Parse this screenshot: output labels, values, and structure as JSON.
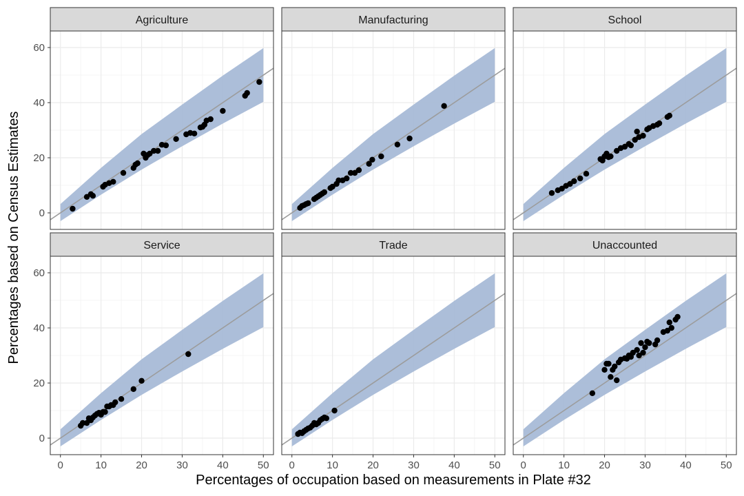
{
  "chart_data": {
    "type": "scatter",
    "xlabel": "Percentages of occupation based on measurements in Plate #32",
    "ylabel": "Percentages based on Census Estimates",
    "xlim": [
      -2.5,
      52.5
    ],
    "ylim": [
      -6,
      66
    ],
    "x_ticks": [
      0,
      10,
      20,
      30,
      40,
      50
    ],
    "y_ticks": [
      0,
      20,
      40,
      60
    ],
    "grid": true,
    "colors": {
      "points": "#000000",
      "band": "#a8bad7",
      "line": "#9c9c9c",
      "strip": "#d9d9d9",
      "grid_major": "#ebebeb",
      "grid_minor": "#f5f5f5",
      "border": "#333333"
    },
    "reference_line": {
      "slope": 1.0,
      "intercept": 0
    },
    "band": {
      "x": [
        0,
        10,
        20,
        30,
        40,
        50
      ],
      "lower": [
        -3,
        6.6,
        15.7,
        24.2,
        32.4,
        40.3
      ],
      "upper": [
        3.2,
        16.3,
        28.6,
        39.3,
        49.8,
        59.8
      ]
    },
    "panels": [
      {
        "name": "Agriculture",
        "points": [
          [
            3,
            1.5
          ],
          [
            6.5,
            5.8
          ],
          [
            7.5,
            6.8
          ],
          [
            8,
            6.2
          ],
          [
            10.5,
            9.5
          ],
          [
            11,
            10.2
          ],
          [
            12,
            10.8
          ],
          [
            13,
            11.3
          ],
          [
            15.5,
            14.5
          ],
          [
            18,
            16.3
          ],
          [
            18.5,
            17.5
          ],
          [
            19,
            18
          ],
          [
            20.5,
            21.5
          ],
          [
            21,
            20
          ],
          [
            21.5,
            21
          ],
          [
            22,
            21.5
          ],
          [
            23,
            22.5
          ],
          [
            24,
            22.5
          ],
          [
            25,
            24.7
          ],
          [
            26,
            24.5
          ],
          [
            28.5,
            26.8
          ],
          [
            31,
            28.5
          ],
          [
            32,
            29
          ],
          [
            33,
            28.8
          ],
          [
            34.5,
            31
          ],
          [
            35,
            31.2
          ],
          [
            35.5,
            32
          ],
          [
            36,
            33.5
          ],
          [
            37,
            34
          ],
          [
            40,
            37
          ],
          [
            45.5,
            42.5
          ],
          [
            46,
            43.5
          ],
          [
            49,
            47.5
          ]
        ]
      },
      {
        "name": "Manufacturing",
        "points": [
          [
            2,
            1.8
          ],
          [
            2.5,
            2.5
          ],
          [
            3,
            2.8
          ],
          [
            3.5,
            3.2
          ],
          [
            4,
            3.5
          ],
          [
            5.5,
            5
          ],
          [
            6,
            5.5
          ],
          [
            6.5,
            6
          ],
          [
            7,
            6.5
          ],
          [
            7.5,
            7
          ],
          [
            8,
            7.5
          ],
          [
            9.5,
            9
          ],
          [
            10,
            9.5
          ],
          [
            11,
            10.5
          ],
          [
            11.5,
            11.8
          ],
          [
            12.5,
            11.8
          ],
          [
            13.5,
            12.5
          ],
          [
            14.5,
            14.5
          ],
          [
            15.5,
            14.5
          ],
          [
            16.5,
            15.5
          ],
          [
            19,
            17.8
          ],
          [
            19.8,
            19.3
          ],
          [
            22,
            20.5
          ],
          [
            26,
            24.8
          ],
          [
            29,
            27
          ],
          [
            37.5,
            38.8
          ]
        ]
      },
      {
        "name": "School",
        "points": [
          [
            7,
            7.2
          ],
          [
            8.5,
            8.2
          ],
          [
            9.5,
            8.8
          ],
          [
            10.5,
            9.8
          ],
          [
            11.5,
            10.5
          ],
          [
            12.5,
            11.5
          ],
          [
            14,
            12.5
          ],
          [
            15.5,
            14.2
          ],
          [
            19,
            19.5
          ],
          [
            19.5,
            19
          ],
          [
            20,
            20.5
          ],
          [
            20.5,
            21.5
          ],
          [
            21,
            20.2
          ],
          [
            21.5,
            20.5
          ],
          [
            23,
            22.5
          ],
          [
            24,
            23.5
          ],
          [
            25,
            24
          ],
          [
            26,
            25
          ],
          [
            26.5,
            24.5
          ],
          [
            27.5,
            26.5
          ],
          [
            28,
            29.5
          ],
          [
            28.5,
            27.5
          ],
          [
            29.5,
            28
          ],
          [
            30.5,
            30.3
          ],
          [
            31,
            30.8
          ],
          [
            32,
            31.5
          ],
          [
            33,
            32
          ],
          [
            33.5,
            32.5
          ],
          [
            35.5,
            34.8
          ],
          [
            36,
            35.3
          ]
        ]
      },
      {
        "name": "Service",
        "points": [
          [
            5,
            4.5
          ],
          [
            5.5,
            5.5
          ],
          [
            6.5,
            5.5
          ],
          [
            7,
            7.2
          ],
          [
            7.5,
            6.5
          ],
          [
            8,
            7.5
          ],
          [
            8.5,
            8.2
          ],
          [
            9,
            8.8
          ],
          [
            9.5,
            9.2
          ],
          [
            10,
            8.5
          ],
          [
            10.5,
            9.5
          ],
          [
            11,
            9.5
          ],
          [
            11.5,
            11.5
          ],
          [
            12,
            11.5
          ],
          [
            12.5,
            12
          ],
          [
            13,
            12
          ],
          [
            13.5,
            13
          ],
          [
            15,
            14.2
          ],
          [
            18,
            17.8
          ],
          [
            20,
            20.8
          ],
          [
            31.5,
            30.5
          ]
        ]
      },
      {
        "name": "Trade",
        "points": [
          [
            1.5,
            1.5
          ],
          [
            2,
            2
          ],
          [
            2.5,
            1.8
          ],
          [
            3,
            2.5
          ],
          [
            3.5,
            3
          ],
          [
            4,
            3.5
          ],
          [
            4.5,
            3.8
          ],
          [
            5,
            4.5
          ],
          [
            5.5,
            5.5
          ],
          [
            6,
            5
          ],
          [
            6.5,
            5.5
          ],
          [
            7,
            6.5
          ],
          [
            7.5,
            7
          ],
          [
            8,
            7.5
          ],
          [
            8.5,
            7.2
          ],
          [
            10.5,
            10
          ]
        ]
      },
      {
        "name": "Unaccounted",
        "points": [
          [
            17,
            16.3
          ],
          [
            20,
            24.8
          ],
          [
            20.5,
            27
          ],
          [
            21,
            27
          ],
          [
            21.5,
            22.2
          ],
          [
            22,
            24.8
          ],
          [
            22.5,
            26
          ],
          [
            23,
            21
          ],
          [
            23.5,
            27.5
          ],
          [
            24,
            28.5
          ],
          [
            25,
            29
          ],
          [
            25.5,
            28.8
          ],
          [
            26,
            30
          ],
          [
            26.5,
            29.5
          ],
          [
            27,
            31
          ],
          [
            28,
            32
          ],
          [
            28.5,
            30
          ],
          [
            29,
            34.5
          ],
          [
            29.5,
            31
          ],
          [
            30,
            33
          ],
          [
            30.5,
            35
          ],
          [
            31,
            34.5
          ],
          [
            32.5,
            34
          ],
          [
            33,
            35.5
          ],
          [
            34.5,
            38.5
          ],
          [
            35.5,
            39
          ],
          [
            36,
            42
          ],
          [
            36.5,
            40
          ],
          [
            37.5,
            43
          ],
          [
            38,
            44
          ]
        ]
      }
    ]
  }
}
